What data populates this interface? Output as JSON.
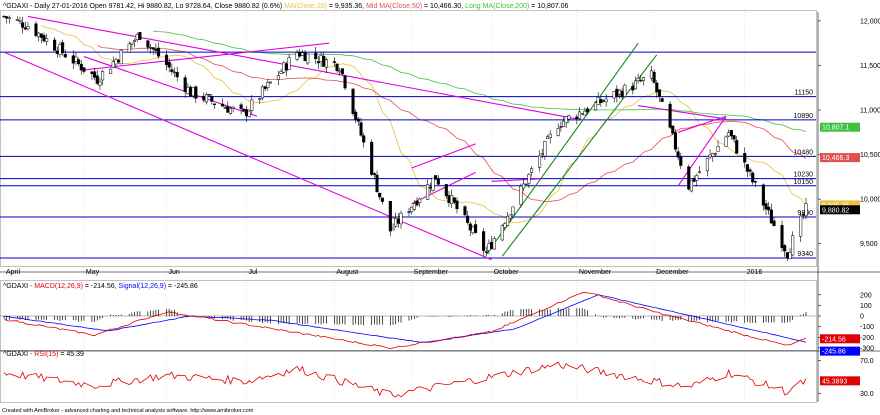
{
  "header": {
    "symbol": "^GDAXI",
    "desc": " - Daily 27-01-2016 Open 9781.42, Hi 9880.82, Lo 9728.64, Close 9880.82 (0.6%) ",
    "ma200_label": "MA(Close,20)",
    "ma200_value": " = 9,935.36, ",
    "mid_label": "Mid MA(Close,50)",
    "mid_value": " = 10,466.30, ",
    "long_label": "Long MA(Close,200)",
    "long_value": " = 10,807.06"
  },
  "macd_header": {
    "symbol": "^GDAXI",
    "macd_label": " - MACD(12,26,9)",
    "macd_value": " = -214.56, ",
    "signal_label": "Signal(12,26,9)",
    "signal_value": " = -245.86"
  },
  "rsi_header": {
    "symbol": "^GDAXI",
    "rsi_label": " - RSI(15)",
    "rsi_value": " = 45.39"
  },
  "footer": "Created with AmiBroker - advanced charting and technical analysis software. http://www.amibroker.com",
  "colors": {
    "bullish_candle": "#ffffff",
    "bearish_candle": "#000000",
    "ma20": "#e8c040",
    "ma50": "#e05050",
    "ma200": "#40c040",
    "trendlines": "#e000e0",
    "channel": "#1a8a1a",
    "horizontal_levels": "#0000cc",
    "macd": "#e00000",
    "signal": "#0000ff",
    "rsi": "#e00000"
  },
  "chart_data": [
    {
      "type": "candlestick",
      "panel": "price",
      "ylim": [
        9250,
        12100
      ],
      "y_ticks": [
        9500,
        10000,
        10500,
        11000,
        11500,
        12000
      ],
      "y_tick_labels": [
        "9,500",
        "10,000",
        "10,500",
        "11,000",
        "11,500",
        "12,000"
      ],
      "x_labels": [
        "April",
        "May",
        "Jun",
        "Jul",
        "August",
        "September",
        "October",
        "November",
        "December",
        "2016"
      ],
      "horizontal_levels": [
        11650,
        11150,
        10890,
        10480,
        10230,
        10150,
        9800,
        9340
      ],
      "horizontal_level_labels": [
        "",
        "11150",
        "10890",
        "10480",
        "10230",
        "10150",
        "9800",
        "9340"
      ],
      "last_value_tags": [
        {
          "label": "10,807.1",
          "value": 10807.06,
          "color": "#40c040"
        },
        {
          "label": "10,466.3",
          "value": 10466.3,
          "color": "#e05050"
        },
        {
          "label": "9,935.36",
          "value": 9935.36,
          "color": "#e8c040"
        },
        {
          "label": "9,880.82",
          "value": 9880.82,
          "color": "#000000"
        }
      ],
      "close_path_keypoints": [
        {
          "date": "2015-04-01",
          "close": 12050
        },
        {
          "date": "2015-04-10",
          "close": 11950
        },
        {
          "date": "2015-05-06",
          "close": 11350
        },
        {
          "date": "2015-05-22",
          "close": 11850
        },
        {
          "date": "2015-06-10",
          "close": 11200
        },
        {
          "date": "2015-06-30",
          "close": 10950
        },
        {
          "date": "2015-07-20",
          "close": 11650
        },
        {
          "date": "2015-08-05",
          "close": 11500
        },
        {
          "date": "2015-08-24",
          "close": 9650
        },
        {
          "date": "2015-09-10",
          "close": 10250
        },
        {
          "date": "2015-09-29",
          "close": 9400
        },
        {
          "date": "2015-10-26",
          "close": 10850
        },
        {
          "date": "2015-11-30",
          "close": 11380
        },
        {
          "date": "2015-12-14",
          "close": 10150
        },
        {
          "date": "2015-12-29",
          "close": 10750
        },
        {
          "date": "2016-01-20",
          "close": 9400
        },
        {
          "date": "2016-01-27",
          "close": 9880.82
        }
      ],
      "trendlines_magenta": [
        {
          "from": {
            "date": "2015-04-01",
            "value": 11650
          },
          "to": {
            "date": "2015-10-01",
            "value": 9320
          }
        },
        {
          "from": {
            "date": "2015-04-10",
            "value": 12050
          },
          "to": {
            "date": "2015-11-02",
            "value": 10900
          }
        },
        {
          "from": {
            "date": "2015-05-01",
            "value": 11450
          },
          "to": {
            "date": "2015-08-01",
            "value": 11750
          }
        },
        {
          "from": {
            "date": "2015-05-01",
            "value": 11600
          },
          "to": {
            "date": "2015-07-05",
            "value": 10930
          }
        },
        {
          "from": {
            "date": "2015-09-01",
            "value": 10350
          },
          "to": {
            "date": "2015-09-25",
            "value": 10620
          }
        },
        {
          "from": {
            "date": "2015-09-01",
            "value": 9950
          },
          "to": {
            "date": "2015-09-25",
            "value": 10300
          }
        },
        {
          "from": {
            "date": "2015-10-01",
            "value": 10200
          },
          "to": {
            "date": "2015-10-20",
            "value": 10230
          }
        },
        {
          "from": {
            "date": "2015-11-25",
            "value": 11050
          },
          "to": {
            "date": "2015-12-28",
            "value": 10900
          }
        },
        {
          "from": {
            "date": "2015-12-10",
            "value": 10750
          },
          "to": {
            "date": "2015-12-28",
            "value": 10930
          }
        },
        {
          "from": {
            "date": "2015-12-10",
            "value": 10150
          },
          "to": {
            "date": "2015-12-28",
            "value": 10930
          }
        }
      ],
      "channel_green": [
        {
          "from": {
            "date": "2015-09-29",
            "value": 9380
          },
          "to": {
            "date": "2015-11-25",
            "value": 11750
          }
        },
        {
          "from": {
            "date": "2015-10-05",
            "value": 9360
          },
          "to": {
            "date": "2015-12-02",
            "value": 11620
          }
        }
      ]
    },
    {
      "type": "line",
      "panel": "macd",
      "ylim": [
        -320,
        320
      ],
      "y_ticks": [
        200,
        100,
        0,
        -100,
        -200,
        -300
      ],
      "y_tick_labels": [
        "200",
        "100",
        "0",
        "-100",
        "-200",
        "-300"
      ],
      "series": [
        {
          "name": "MACD(12,26,9)",
          "keypoints": [
            {
              "date": "2015-04-01",
              "value": -30
            },
            {
              "date": "2015-05-05",
              "value": -180
            },
            {
              "date": "2015-06-01",
              "value": 40
            },
            {
              "date": "2015-07-01",
              "value": -80
            },
            {
              "date": "2015-08-24",
              "value": -300
            },
            {
              "date": "2015-10-01",
              "value": -150
            },
            {
              "date": "2015-11-05",
              "value": 230
            },
            {
              "date": "2015-12-01",
              "value": 40
            },
            {
              "date": "2016-01-20",
              "value": -280
            },
            {
              "date": "2016-01-27",
              "value": -214.56
            }
          ]
        },
        {
          "name": "Signal(12,26,9)",
          "keypoints": [
            {
              "date": "2015-04-01",
              "value": 0
            },
            {
              "date": "2015-05-10",
              "value": -140
            },
            {
              "date": "2015-06-10",
              "value": 0
            },
            {
              "date": "2015-07-10",
              "value": -40
            },
            {
              "date": "2015-09-05",
              "value": -250
            },
            {
              "date": "2015-10-10",
              "value": -120
            },
            {
              "date": "2015-11-10",
              "value": 200
            },
            {
              "date": "2015-12-10",
              "value": 30
            },
            {
              "date": "2016-01-27",
              "value": -245.86
            }
          ]
        }
      ],
      "last_value_tags": [
        {
          "label": "-214.56",
          "value": -214.56
        },
        {
          "label": "-245.86",
          "value": -245.86
        }
      ]
    },
    {
      "type": "line",
      "panel": "rsi",
      "ylim": [
        20,
        80
      ],
      "y_ticks": [
        70,
        30
      ],
      "y_tick_labels": [
        "70.0",
        "30.0"
      ],
      "series": [
        {
          "name": "RSI(15)",
          "keypoints": [
            {
              "date": "2015-04-01",
              "value": 55
            },
            {
              "date": "2015-05-05",
              "value": 40
            },
            {
              "date": "2015-06-01",
              "value": 52
            },
            {
              "date": "2015-07-01",
              "value": 45
            },
            {
              "date": "2015-07-20",
              "value": 60
            },
            {
              "date": "2015-08-24",
              "value": 28
            },
            {
              "date": "2015-10-26",
              "value": 65
            },
            {
              "date": "2015-12-14",
              "value": 38
            },
            {
              "date": "2015-12-29",
              "value": 55
            },
            {
              "date": "2016-01-20",
              "value": 32
            },
            {
              "date": "2016-01-27",
              "value": 45.39
            }
          ]
        }
      ],
      "last_value_tags": [
        {
          "label": "45.3893",
          "value": 45.39
        }
      ]
    }
  ]
}
